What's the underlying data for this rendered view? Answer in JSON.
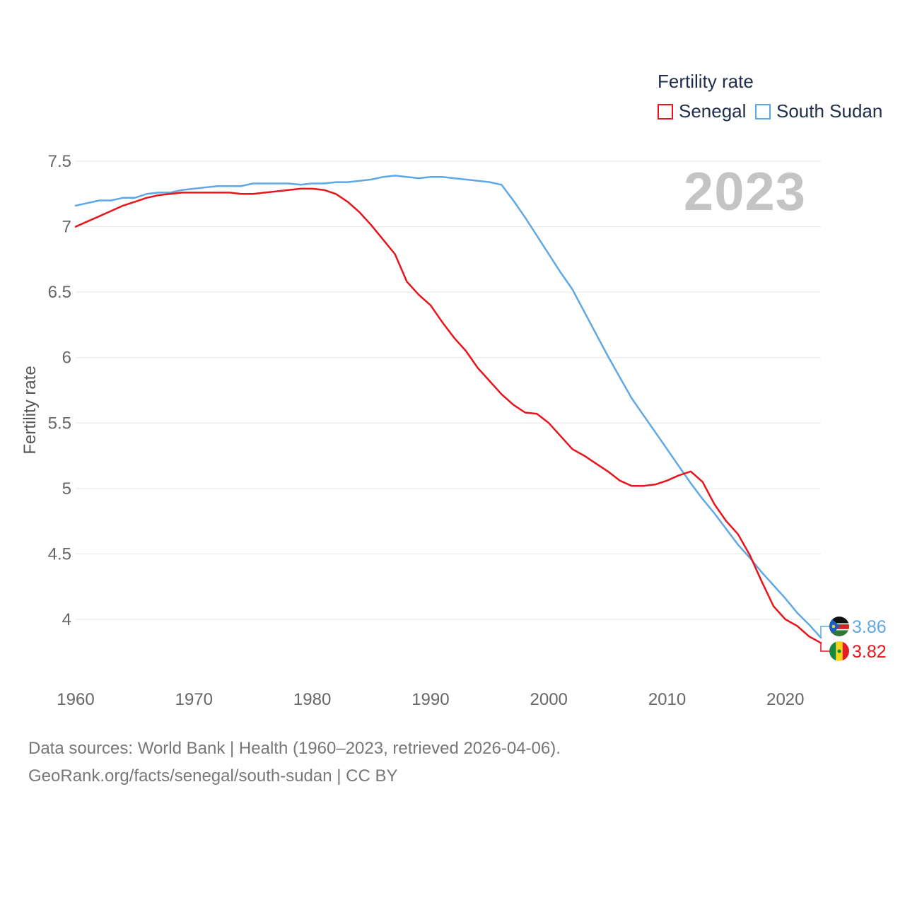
{
  "chart_data": {
    "type": "line",
    "title": "Fertility rate",
    "xlabel": "",
    "ylabel": "Fertility rate",
    "year_display": "2023",
    "xlim": [
      1960,
      2023
    ],
    "ylim": [
      3.7,
      7.55
    ],
    "xticks": [
      1960,
      1970,
      1980,
      1990,
      2000,
      2010,
      2020
    ],
    "yticks": [
      4,
      4.5,
      5,
      5.5,
      6,
      6.5,
      7,
      7.5
    ],
    "ytick_labels": [
      "4",
      "4.5",
      "5",
      "5.5",
      "6",
      "6.5",
      "7",
      "7.5"
    ],
    "x": [
      1960,
      1961,
      1962,
      1963,
      1964,
      1965,
      1966,
      1967,
      1968,
      1969,
      1970,
      1971,
      1972,
      1973,
      1974,
      1975,
      1976,
      1977,
      1978,
      1979,
      1980,
      1981,
      1982,
      1983,
      1984,
      1985,
      1986,
      1987,
      1988,
      1989,
      1990,
      1991,
      1992,
      1993,
      1994,
      1995,
      1996,
      1997,
      1998,
      1999,
      2000,
      2001,
      2002,
      2003,
      2004,
      2005,
      2006,
      2007,
      2008,
      2009,
      2010,
      2011,
      2012,
      2013,
      2014,
      2015,
      2016,
      2017,
      2018,
      2019,
      2020,
      2021,
      2022,
      2023
    ],
    "series": [
      {
        "name": "Senegal",
        "color": "#e8141b",
        "end_label": "3.82",
        "flag": "senegal-flag-icon",
        "values": [
          7.0,
          7.04,
          7.08,
          7.12,
          7.16,
          7.19,
          7.22,
          7.24,
          7.25,
          7.26,
          7.26,
          7.26,
          7.26,
          7.26,
          7.25,
          7.25,
          7.26,
          7.27,
          7.28,
          7.29,
          7.29,
          7.28,
          7.25,
          7.19,
          7.11,
          7.01,
          6.9,
          6.79,
          6.58,
          6.48,
          6.4,
          6.27,
          6.15,
          6.05,
          5.92,
          5.82,
          5.72,
          5.64,
          5.58,
          5.57,
          5.5,
          5.4,
          5.3,
          5.25,
          5.19,
          5.13,
          5.06,
          5.02,
          5.02,
          5.03,
          5.06,
          5.1,
          5.13,
          5.05,
          4.88,
          4.75,
          4.65,
          4.49,
          4.29,
          4.1,
          4.0,
          3.95,
          3.87,
          3.82
        ]
      },
      {
        "name": "South Sudan",
        "color": "#5fa8e6",
        "end_label": "3.86",
        "flag": "south-sudan-flag-icon",
        "values": [
          7.16,
          7.18,
          7.2,
          7.2,
          7.22,
          7.22,
          7.25,
          7.26,
          7.26,
          7.28,
          7.29,
          7.3,
          7.31,
          7.31,
          7.31,
          7.33,
          7.33,
          7.33,
          7.33,
          7.32,
          7.33,
          7.33,
          7.34,
          7.34,
          7.35,
          7.36,
          7.38,
          7.39,
          7.38,
          7.37,
          7.38,
          7.38,
          7.37,
          7.36,
          7.35,
          7.34,
          7.32,
          7.2,
          7.07,
          6.93,
          6.79,
          6.65,
          6.52,
          6.35,
          6.18,
          6.01,
          5.85,
          5.69,
          5.56,
          5.43,
          5.3,
          5.17,
          5.04,
          4.92,
          4.81,
          4.69,
          4.57,
          4.47,
          4.36,
          4.26,
          4.16,
          4.05,
          3.96,
          3.86
        ]
      }
    ]
  },
  "footer": {
    "line1": "Data sources: World Bank | Health (1960–2023, retrieved 2026-04-06).",
    "line2": "GeoRank.org/facts/senegal/south-sudan | CC BY"
  }
}
